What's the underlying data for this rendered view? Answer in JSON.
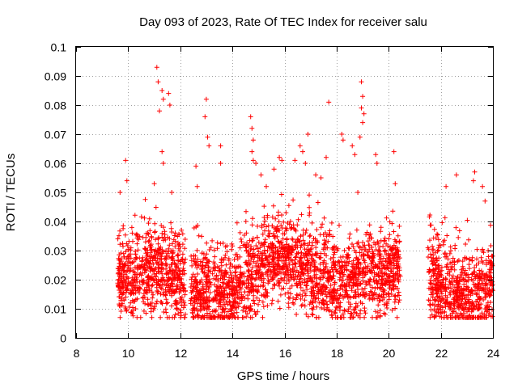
{
  "chart_data": {
    "type": "scatter",
    "title": "Day 093 of 2023, Rate Of TEC Index for receiver salu",
    "xlabel": "GPS time / hours",
    "ylabel": "ROTI / TECUs",
    "xlim": [
      8,
      24
    ],
    "ylim": [
      0,
      0.1
    ],
    "xticks": [
      8,
      10,
      12,
      14,
      16,
      18,
      20,
      22,
      24
    ],
    "yticks": [
      0,
      0.01,
      0.02,
      0.03,
      0.04,
      0.05,
      0.06,
      0.07,
      0.08,
      0.09,
      0.1
    ],
    "xtick_labels": [
      "8",
      "10",
      "12",
      "14",
      "16",
      "18",
      "20",
      "22",
      "24"
    ],
    "ytick_labels": [
      "0",
      "0.01",
      "0.02",
      "0.03",
      "0.04",
      "0.05",
      "0.06",
      "0.07",
      "0.08",
      "0.09",
      "0.1"
    ],
    "grid": true,
    "marker": "plus",
    "marker_color": "#ff0000",
    "observation_windows": [
      [
        9.6,
        12.2
      ],
      [
        12.4,
        20.45
      ],
      [
        21.5,
        24
      ]
    ],
    "outliers": [
      [
        9.9,
        0.061
      ],
      [
        9.95,
        0.054
      ],
      [
        11.1,
        0.093
      ],
      [
        11.15,
        0.088
      ],
      [
        11.3,
        0.085
      ],
      [
        11.35,
        0.082
      ],
      [
        11.2,
        0.078
      ],
      [
        11.55,
        0.084
      ],
      [
        11.6,
        0.08
      ],
      [
        11.3,
        0.064
      ],
      [
        11.35,
        0.06
      ],
      [
        11.0,
        0.053
      ],
      [
        12.6,
        0.059
      ],
      [
        12.65,
        0.052
      ],
      [
        13.0,
        0.082
      ],
      [
        12.95,
        0.076
      ],
      [
        13.05,
        0.069
      ],
      [
        13.1,
        0.066
      ],
      [
        13.55,
        0.066
      ],
      [
        13.55,
        0.06
      ],
      [
        14.7,
        0.076
      ],
      [
        14.75,
        0.072
      ],
      [
        14.8,
        0.068
      ],
      [
        14.75,
        0.064
      ],
      [
        14.8,
        0.061
      ],
      [
        14.9,
        0.06
      ],
      [
        15.1,
        0.056
      ],
      [
        15.3,
        0.052
      ],
      [
        15.6,
        0.058
      ],
      [
        15.8,
        0.062
      ],
      [
        15.9,
        0.061
      ],
      [
        16.4,
        0.061
      ],
      [
        16.6,
        0.066
      ],
      [
        16.7,
        0.064
      ],
      [
        16.8,
        0.06
      ],
      [
        16.9,
        0.07
      ],
      [
        17.2,
        0.056
      ],
      [
        17.4,
        0.055
      ],
      [
        17.6,
        0.062
      ],
      [
        17.7,
        0.081
      ],
      [
        18.2,
        0.07
      ],
      [
        18.25,
        0.068
      ],
      [
        18.6,
        0.066
      ],
      [
        18.7,
        0.063
      ],
      [
        18.9,
        0.069
      ],
      [
        18.95,
        0.088
      ],
      [
        19.0,
        0.083
      ],
      [
        18.95,
        0.079
      ],
      [
        19.05,
        0.077
      ],
      [
        19.0,
        0.074
      ],
      [
        19.5,
        0.063
      ],
      [
        19.55,
        0.06
      ],
      [
        20.2,
        0.064
      ],
      [
        20.25,
        0.053
      ],
      [
        22.6,
        0.056
      ],
      [
        22.2,
        0.052
      ],
      [
        23.3,
        0.057
      ],
      [
        23.25,
        0.054
      ],
      [
        23.6,
        0.052
      ],
      [
        23.7,
        0.047
      ]
    ]
  }
}
